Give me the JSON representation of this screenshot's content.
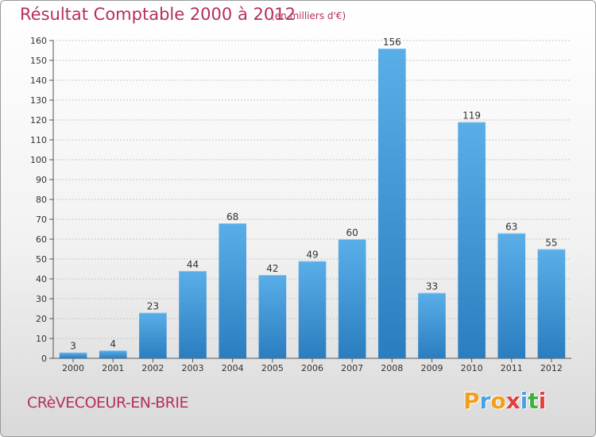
{
  "header": {
    "title": "Résultat Comptable 2000 à 2012",
    "subtitle": "(en milliers d'€)"
  },
  "footer": {
    "commune": "CRèVECOEUR-EN-BRIE",
    "logo": [
      "P",
      "r",
      "o",
      "x",
      "i",
      "t",
      "i"
    ]
  },
  "colors": {
    "title": "#b5305a",
    "bar_top": "#5aaee8",
    "bar_bottom": "#2a7ec0",
    "logo_letters": [
      "#f0a020",
      "#4aa0e0",
      "#f0a020",
      "#e04040",
      "#4aa0e0",
      "#40b040",
      "#e04040"
    ]
  },
  "chart_data": {
    "type": "bar",
    "categories": [
      "2000",
      "2001",
      "2002",
      "2003",
      "2004",
      "2005",
      "2006",
      "2007",
      "2008",
      "2009",
      "2010",
      "2011",
      "2012"
    ],
    "values": [
      3,
      4,
      23,
      44,
      68,
      42,
      49,
      60,
      156,
      33,
      119,
      63,
      55
    ],
    "title": "Résultat Comptable 2000 à 2012",
    "xlabel": "",
    "ylabel": "",
    "ylim": [
      0,
      160
    ],
    "yticks": [
      0,
      10,
      20,
      30,
      40,
      50,
      60,
      70,
      80,
      90,
      100,
      110,
      120,
      130,
      140,
      150,
      160
    ],
    "grid": true,
    "data_labels": true
  }
}
